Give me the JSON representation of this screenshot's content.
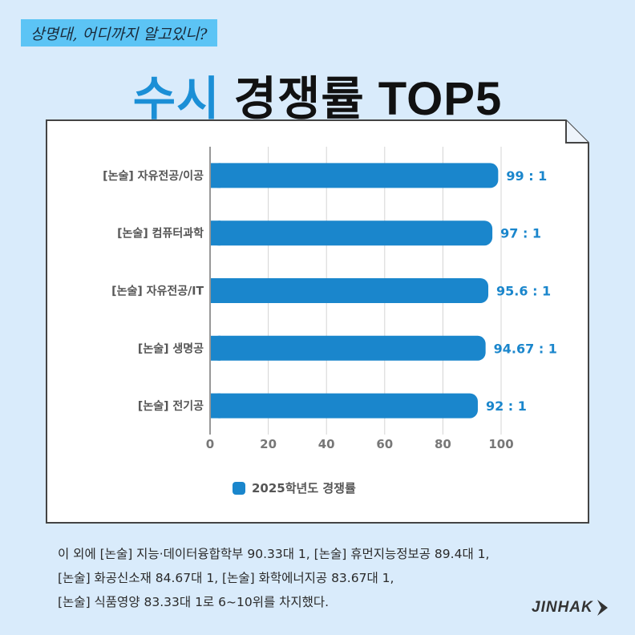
{
  "tagline": "상명대, 어디까지 알고있니?",
  "headline": {
    "accent": "수시",
    "rest": "경쟁률 TOP5"
  },
  "chart_data": {
    "type": "bar",
    "orientation": "horizontal",
    "categories": [
      "[논술] 자유전공/이공",
      "[논술] 컴퓨터과학",
      "[논술] 자유전공/IT",
      "[논술] 생명공",
      "[논술] 전기공"
    ],
    "series": [
      {
        "name": "2025학년도 경쟁률",
        "values": [
          99,
          97,
          95.6,
          94.67,
          92
        ],
        "labels": [
          "99 : 1",
          "97 : 1",
          "95.6 : 1",
          "94.67 : 1",
          "92 : 1"
        ]
      }
    ],
    "xlim": [
      0,
      100
    ],
    "xticks": [
      "0",
      "20",
      "40",
      "60",
      "80",
      "100"
    ],
    "grid": true,
    "legend_position": "bottom",
    "colors": {
      "bar": "#1a86cc",
      "label": "#1a86cc"
    }
  },
  "notes": [
    "이 외에 [논술] 지능·데이터융합학부 90.33대 1, [논술] 휴먼지능정보공 89.4대 1,",
    "[논술] 화공신소재 84.67대 1, [논술] 화학에너지공 83.67대 1,",
    "[논술] 식품영양 83.33대 1로 6~10위를 차지했다."
  ],
  "logo": "JINHAK"
}
